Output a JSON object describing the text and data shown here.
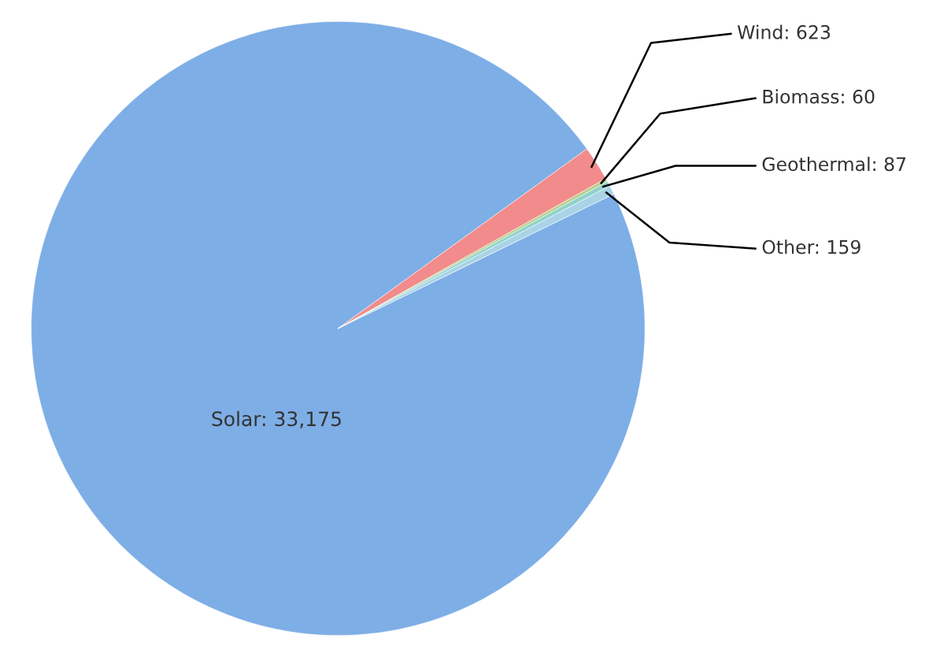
{
  "chart_data": {
    "type": "pie",
    "categories": [
      "Solar",
      "Wind",
      "Biomass",
      "Geothermal",
      "Other"
    ],
    "values": [
      33175,
      623,
      60,
      87,
      159
    ],
    "value_labels": [
      "33,175",
      "623",
      "60",
      "87",
      "159"
    ],
    "colors": [
      "#7eaee6",
      "#f28b8b",
      "#b9cf8a",
      "#8fd3c9",
      "#a9d3e6"
    ],
    "legend": false
  }
}
